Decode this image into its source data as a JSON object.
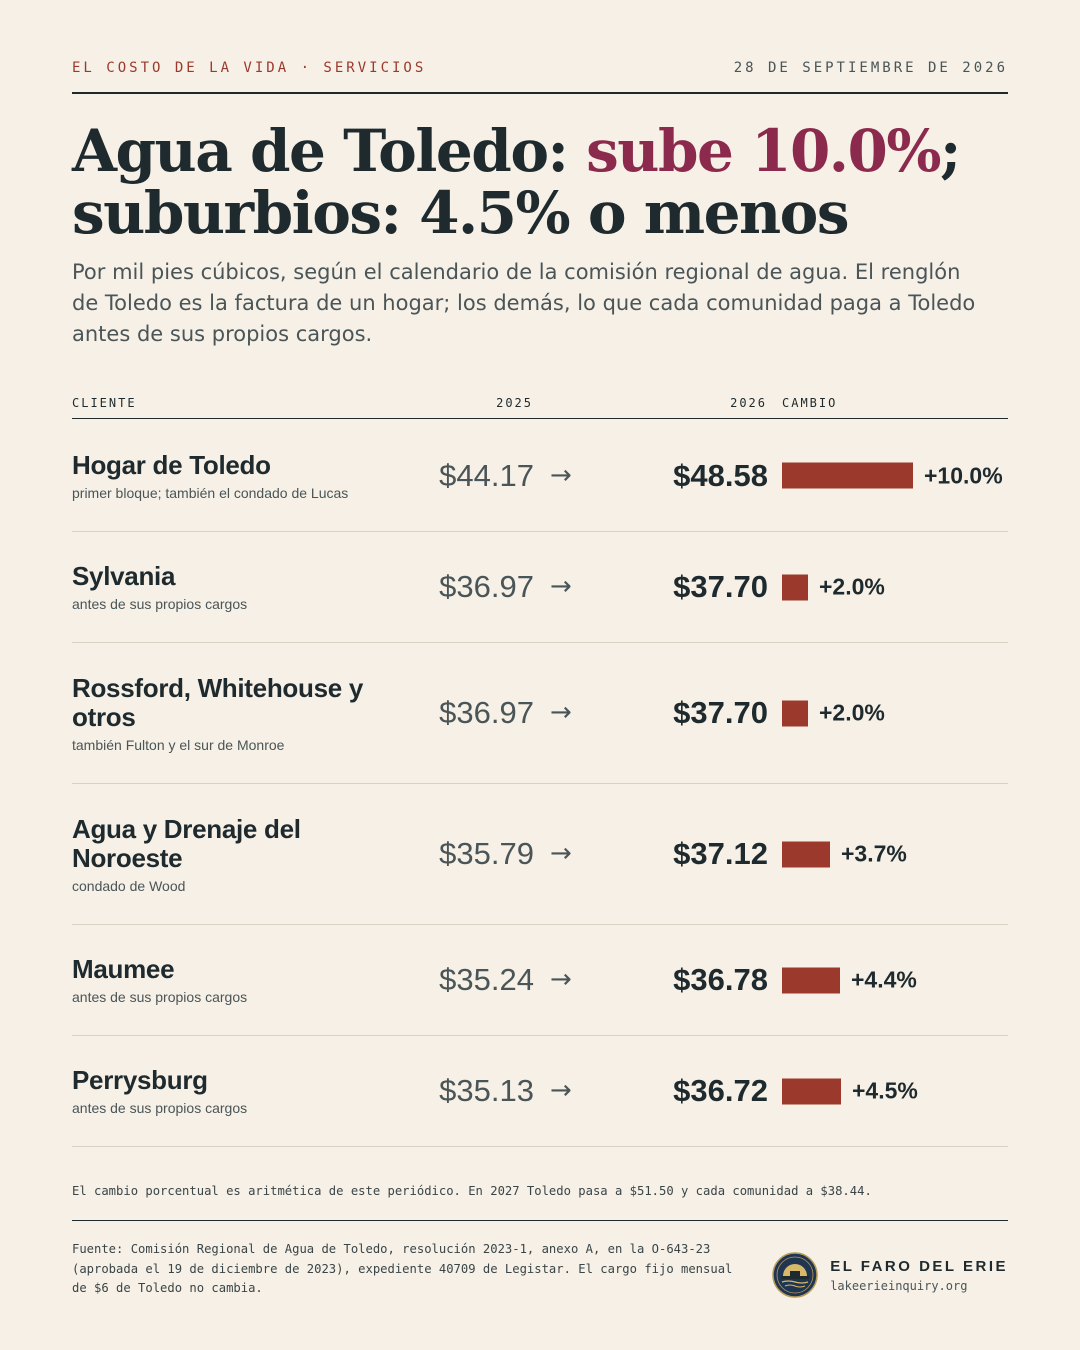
{
  "header": {
    "kicker": "EL COSTO DE LA VIDA · SERVICIOS",
    "date": "28 DE SEPTIEMBRE DE 2026"
  },
  "headline": {
    "part1": "Agua de Toledo: ",
    "highlight": "sube 10.0%",
    "part2": "; suburbios: 4.5% o menos"
  },
  "dek": "Por mil pies cúbicos, según el calendario de la comisión regional de agua. El renglón de Toledo es la factura de un hogar; los demás, lo que cada comunidad paga a Toledo antes de sus propios cargos.",
  "colors": {
    "accent": "#9b3a2c",
    "headline_highlight": "#8b2a4c",
    "background": "#f6f0e6",
    "ink": "#1e2a2e"
  },
  "chart_data": {
    "type": "table",
    "columns": {
      "client": "CLIENTE",
      "y2025": "2025",
      "y2026": "2026",
      "change": "CAMBIO"
    },
    "arrow": "→",
    "rows": [
      {
        "name": "Hogar de Toledo",
        "note": "primer bloque; también el condado de Lucas",
        "v2025": "$44.17",
        "v2026": "$48.58",
        "change_value": 10.0,
        "change_label": "+10.0%"
      },
      {
        "name": "Sylvania",
        "note": "antes de sus propios cargos",
        "v2025": "$36.97",
        "v2026": "$37.70",
        "change_value": 2.0,
        "change_label": "+2.0%"
      },
      {
        "name": "Rossford, Whitehouse y otros",
        "note": "también Fulton y el sur de Monroe",
        "v2025": "$36.97",
        "v2026": "$37.70",
        "change_value": 2.0,
        "change_label": "+2.0%"
      },
      {
        "name": "Agua y Drenaje del Noroeste",
        "note": "condado de Wood",
        "v2025": "$35.79",
        "v2026": "$37.12",
        "change_value": 3.7,
        "change_label": "+3.7%"
      },
      {
        "name": "Maumee",
        "note": "antes de sus propios cargos",
        "v2025": "$35.24",
        "v2026": "$36.78",
        "change_value": 4.4,
        "change_label": "+4.4%"
      },
      {
        "name": "Perrysburg",
        "note": "antes de sus propios cargos",
        "v2025": "$35.13",
        "v2026": "$36.72",
        "change_value": 4.5,
        "change_label": "+4.5%"
      }
    ]
  },
  "footnote": "El cambio porcentual es aritmética de este periódico. En 2027 Toledo pasa a $51.50 y cada comunidad a $38.44.",
  "source": "Fuente: Comisión Regional de Agua de Toledo, resolución 2023-1, anexo A, en la O-643-23 (aprobada el 19 de diciembre de 2023), expediente 40709 de Legistar. El cargo fijo mensual de $6 de Toledo no cambia.",
  "brand": {
    "name": "EL FARO DEL ERIE",
    "url": "lakeerieinquiry.org",
    "logo_icon": "lighthouse-logo-icon"
  }
}
